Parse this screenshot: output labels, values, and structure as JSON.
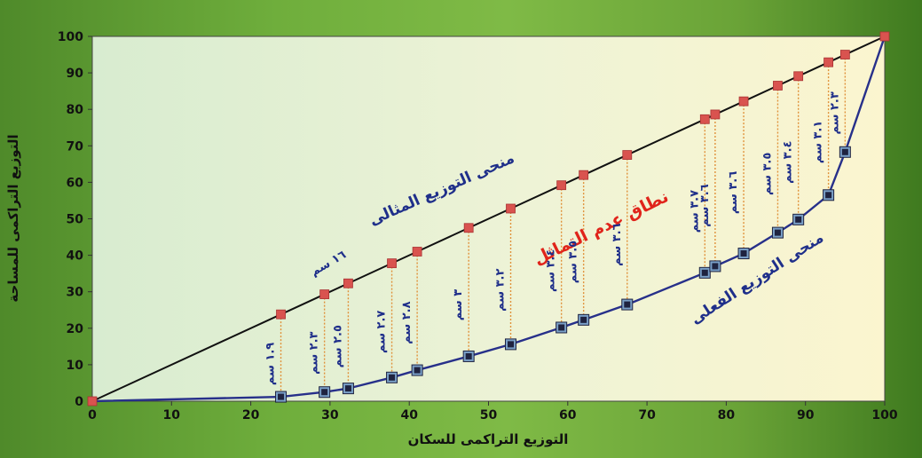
{
  "chart_data": {
    "type": "line",
    "xlabel": "التوزيع التراكمى للسكان",
    "ylabel": "التوزيع التراكمى للمساحة",
    "xlim": [
      0,
      100
    ],
    "ylim": [
      0,
      100
    ],
    "x_ticks": [
      "0",
      "10",
      "20",
      "30",
      "40",
      "50",
      "60",
      "70",
      "80",
      "90",
      "100"
    ],
    "y_ticks": [
      "0",
      "10",
      "20",
      "30",
      "40",
      "50",
      "60",
      "70",
      "80",
      "90",
      "100"
    ],
    "grid": false,
    "series": [
      {
        "name": "منحى التوزيع المثالى",
        "color": "#111111",
        "marker_color": "#d9534f",
        "x": [
          0,
          23.8,
          29.3,
          32.3,
          37.8,
          41.0,
          47.5,
          52.8,
          59.2,
          62.0,
          67.5,
          77.3,
          78.6,
          82.2,
          86.5,
          89.1,
          92.9,
          95.0,
          100
        ],
        "y": [
          0,
          23.8,
          29.3,
          32.3,
          37.8,
          41.0,
          47.5,
          52.8,
          59.2,
          62.0,
          67.5,
          77.3,
          78.6,
          82.2,
          86.5,
          89.1,
          92.9,
          95.0,
          100
        ]
      },
      {
        "name": "منحى التوزيع الفعلى",
        "color": "#27308a",
        "marker_color": "#1f2340",
        "x": [
          0,
          23.8,
          29.3,
          32.3,
          37.8,
          41.0,
          47.5,
          52.8,
          59.2,
          62.0,
          67.5,
          77.3,
          78.6,
          82.2,
          86.5,
          89.1,
          92.9,
          95.0,
          100
        ],
        "y": [
          0,
          1.2,
          2.5,
          3.5,
          6.5,
          8.5,
          12.3,
          15.6,
          20.2,
          22.3,
          26.5,
          35.2,
          37.0,
          40.5,
          46.2,
          49.8,
          56.5,
          68.3,
          100
        ]
      }
    ],
    "annotations": {
      "ideal_label": "منحى التوزيع المثالى",
      "actual_label": "منحى التوزيع الفعلى",
      "zone_label": "نطاق عدم التماثل",
      "ideal_length": "١٦ سم",
      "distances": [
        "١.٩ سم",
        "٢.٣ سم",
        "٢.٥ سم",
        "٢.٧ سم",
        "٢.٨ سم",
        "٣ سم",
        "٣.٢ سم",
        "٣.٤ سم",
        "٣.٥ سم",
        "٣.٦ سم",
        "٣.٧ سم",
        "٣.٦ سم",
        "٣.٦ سم",
        "٣.٥ سم",
        "٣.٤ سم",
        "٣.١ سم",
        "٢.٣ سم"
      ]
    }
  }
}
